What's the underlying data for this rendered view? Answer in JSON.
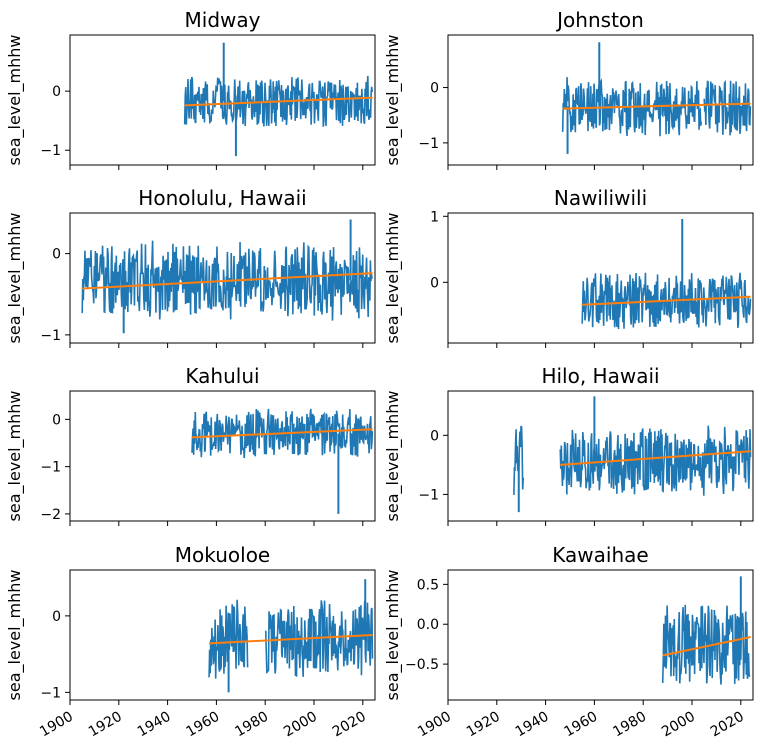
{
  "colors": {
    "series": "#1f77b4",
    "trend": "#ff7f0e"
  },
  "chart_data": [
    {
      "type": "line",
      "title": "Midway",
      "ylabel": "sea_level_mhhw",
      "xlabel": "",
      "xlim": [
        1900,
        2025
      ],
      "ylim": [
        -1.25,
        0.95
      ],
      "yticks": [
        -1,
        0
      ],
      "series": {
        "segments": [
          [
            1947,
            2024
          ]
        ],
        "center": -0.17,
        "amp": 0.45,
        "spikes": [
          [
            1963,
            0.82
          ],
          [
            1968,
            -1.1
          ]
        ]
      },
      "trend": {
        "x": [
          1947,
          2024
        ],
        "y": [
          -0.24,
          -0.11
        ]
      }
    },
    {
      "type": "line",
      "title": "Johnston",
      "ylabel": "sea_level_mhhw",
      "xlabel": "",
      "xlim": [
        1900,
        2025
      ],
      "ylim": [
        -1.4,
        0.95
      ],
      "yticks": [
        -1,
        0
      ],
      "series": {
        "segments": [
          [
            1947,
            2004
          ],
          [
            2005,
            2024
          ]
        ],
        "center": -0.34,
        "amp": 0.55,
        "spikes": [
          [
            1962,
            0.82
          ],
          [
            1949,
            -1.2
          ]
        ]
      },
      "trend": {
        "x": [
          1947,
          2024
        ],
        "y": [
          -0.38,
          -0.29
        ]
      }
    },
    {
      "type": "line",
      "title": "Honolulu, Hawaii",
      "ylabel": "sea_level_mhhw",
      "xlabel": "",
      "xlim": [
        1900,
        2025
      ],
      "ylim": [
        -1.1,
        0.5
      ],
      "yticks": [
        -1,
        0
      ],
      "series": {
        "segments": [
          [
            1905,
            2024
          ]
        ],
        "center": -0.33,
        "amp": 0.5,
        "spikes": [
          [
            1922,
            -0.98
          ],
          [
            2015,
            0.42
          ]
        ]
      },
      "trend": {
        "x": [
          1905,
          2024
        ],
        "y": [
          -0.43,
          -0.24
        ]
      }
    },
    {
      "type": "line",
      "title": "Nawiliwili",
      "ylabel": "sea_level_mhhw",
      "xlabel": "",
      "xlim": [
        1900,
        2025
      ],
      "ylim": [
        -0.92,
        1.05
      ],
      "yticks": [
        0,
        1
      ],
      "series": {
        "segments": [
          [
            1955,
            2024
          ]
        ],
        "center": -0.28,
        "amp": 0.45,
        "spikes": [
          [
            1996,
            0.96
          ]
        ]
      },
      "trend": {
        "x": [
          1955,
          2024
        ],
        "y": [
          -0.34,
          -0.22
        ]
      }
    },
    {
      "type": "line",
      "title": "Kahului",
      "ylabel": "sea_level_mhhw",
      "xlabel": "",
      "xlim": [
        1900,
        2025
      ],
      "ylim": [
        -2.15,
        0.6
      ],
      "yticks": [
        -2,
        -1,
        0
      ],
      "series": {
        "segments": [
          [
            1950,
            2024
          ]
        ],
        "center": -0.3,
        "amp": 0.55,
        "spikes": [
          [
            2010,
            -2.0
          ]
        ]
      },
      "trend": {
        "x": [
          1950,
          2024
        ],
        "y": [
          -0.38,
          -0.21
        ]
      }
    },
    {
      "type": "line",
      "title": "Hilo, Hawaii",
      "ylabel": "sea_level_mhhw",
      "xlabel": "",
      "xlim": [
        1900,
        2025
      ],
      "ylim": [
        -1.45,
        0.75
      ],
      "yticks": [
        -1,
        0
      ],
      "series": {
        "segments": [
          [
            1927,
            1931
          ],
          [
            1946,
            2024
          ]
        ],
        "center": -0.42,
        "amp": 0.62,
        "spikes": [
          [
            1960,
            0.66
          ],
          [
            1929,
            -1.3
          ]
        ]
      },
      "trend": {
        "x": [
          1946,
          2024
        ],
        "y": [
          -0.5,
          -0.27
        ]
      }
    },
    {
      "type": "line",
      "title": "Mokuoloe",
      "ylabel": "sea_level_mhhw",
      "xlabel": "",
      "xlim": [
        1900,
        2025
      ],
      "ylim": [
        -1.1,
        0.6
      ],
      "yticks": [
        -1,
        0
      ],
      "series": {
        "segments": [
          [
            1957,
            1973
          ],
          [
            1980,
            2024
          ]
        ],
        "center": -0.3,
        "amp": 0.55,
        "spikes": [
          [
            1965,
            -1.0
          ],
          [
            2021,
            0.48
          ]
        ]
      },
      "trend": {
        "x": [
          1957,
          2024
        ],
        "y": [
          -0.36,
          -0.25
        ]
      }
    },
    {
      "type": "line",
      "title": "Kawaihae",
      "ylabel": "sea_level_mhhw",
      "xlabel": "",
      "xlim": [
        1900,
        2025
      ],
      "ylim": [
        -0.95,
        0.68
      ],
      "yticks": [
        -0.5,
        0.0,
        0.5
      ],
      "ytick_labels": [
        "−0.5",
        "0.0",
        "0.5"
      ],
      "series": {
        "segments": [
          [
            1988,
            2024
          ]
        ],
        "center": -0.25,
        "amp": 0.55,
        "spikes": [
          [
            2020,
            0.6
          ]
        ]
      },
      "trend": {
        "x": [
          1988,
          2024
        ],
        "y": [
          -0.39,
          -0.16
        ]
      }
    }
  ],
  "xticks": [
    1900,
    1920,
    1940,
    1960,
    1980,
    2000,
    2020
  ]
}
